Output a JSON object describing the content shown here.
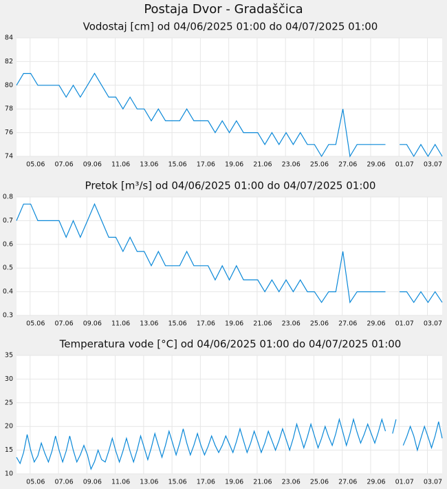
{
  "title": "Postaja Dvor - Gradaščica",
  "chart_data": [
    {
      "type": "line",
      "title": "Vodostaj [cm] od 04/06/2025 01:00 do 04/07/2025 01:00",
      "color": "#0a88d8",
      "grid": true,
      "xlim": [
        "2025-06-04 01:00",
        "2025-07-04 01:00"
      ],
      "xticks": [
        {
          "value": "2025-06-05 00:00",
          "label": "05.06"
        },
        {
          "value": "2025-06-07 00:00",
          "label": "07.06"
        },
        {
          "value": "2025-06-09 00:00",
          "label": "09.06"
        },
        {
          "value": "2025-06-11 00:00",
          "label": "11.06"
        },
        {
          "value": "2025-06-13 00:00",
          "label": "13.06"
        },
        {
          "value": "2025-06-15 00:00",
          "label": "15.06"
        },
        {
          "value": "2025-06-17 00:00",
          "label": "17.06"
        },
        {
          "value": "2025-06-19 00:00",
          "label": "19.06"
        },
        {
          "value": "2025-06-21 00:00",
          "label": "21.06"
        },
        {
          "value": "2025-06-23 00:00",
          "label": "23.06"
        },
        {
          "value": "2025-06-25 00:00",
          "label": "25.06"
        },
        {
          "value": "2025-06-27 00:00",
          "label": "27.06"
        },
        {
          "value": "2025-06-29 00:00",
          "label": "29.06"
        },
        {
          "value": "2025-07-01 00:00",
          "label": "01.07"
        },
        {
          "value": "2025-07-03 00:00",
          "label": "03.07"
        }
      ],
      "ylim": [
        74,
        84
      ],
      "yticks": [
        74,
        76,
        78,
        80,
        82,
        84
      ],
      "x": [
        "2025-06-04 01:00",
        "2025-06-04 13:00",
        "2025-06-05 01:00",
        "2025-06-05 13:00",
        "2025-06-06 01:00",
        "2025-06-06 13:00",
        "2025-06-07 01:00",
        "2025-06-07 13:00",
        "2025-06-08 01:00",
        "2025-06-08 13:00",
        "2025-06-09 01:00",
        "2025-06-09 13:00",
        "2025-06-10 01:00",
        "2025-06-10 13:00",
        "2025-06-11 01:00",
        "2025-06-11 13:00",
        "2025-06-12 01:00",
        "2025-06-12 13:00",
        "2025-06-13 01:00",
        "2025-06-13 13:00",
        "2025-06-14 01:00",
        "2025-06-14 13:00",
        "2025-06-15 01:00",
        "2025-06-15 13:00",
        "2025-06-16 01:00",
        "2025-06-16 13:00",
        "2025-06-17 01:00",
        "2025-06-17 13:00",
        "2025-06-18 01:00",
        "2025-06-18 13:00",
        "2025-06-19 01:00",
        "2025-06-19 13:00",
        "2025-06-20 01:00",
        "2025-06-20 13:00",
        "2025-06-21 01:00",
        "2025-06-21 13:00",
        "2025-06-22 01:00",
        "2025-06-22 13:00",
        "2025-06-23 01:00",
        "2025-06-23 13:00",
        "2025-06-24 01:00",
        "2025-06-24 13:00",
        "2025-06-25 01:00",
        "2025-06-25 13:00",
        "2025-06-26 01:00",
        "2025-06-26 13:00",
        "2025-06-27 01:00",
        "2025-06-27 13:00",
        "2025-06-28 01:00",
        "2025-06-28 13:00",
        "2025-06-29 01:00",
        "2025-06-29 13:00",
        "2025-06-30 01:00",
        "2025-06-30 13:00",
        "2025-07-01 01:00",
        "2025-07-01 13:00",
        "2025-07-02 01:00",
        "2025-07-02 13:00",
        "2025-07-03 01:00",
        "2025-07-03 13:00",
        "2025-07-04 01:00"
      ],
      "values": [
        80,
        81,
        81,
        80,
        80,
        80,
        80,
        79,
        80,
        79,
        80,
        81,
        80,
        79,
        79,
        78,
        79,
        78,
        78,
        77,
        78,
        77,
        77,
        77,
        78,
        77,
        77,
        77,
        76,
        77,
        76,
        77,
        76,
        76,
        76,
        75,
        76,
        75,
        76,
        75,
        76,
        75,
        75,
        74,
        75,
        75,
        78,
        74,
        75,
        75,
        75,
        75,
        75,
        null,
        75,
        75,
        74,
        75,
        74,
        75,
        74
      ]
    },
    {
      "type": "line",
      "title": "Pretok [m³/s] od 04/06/2025 01:00 do 04/07/2025 01:00",
      "color": "#0a88d8",
      "grid": true,
      "xlim": [
        "2025-06-04 01:00",
        "2025-07-04 01:00"
      ],
      "xticks": [
        {
          "value": "2025-06-05 00:00",
          "label": "05.06"
        },
        {
          "value": "2025-06-07 00:00",
          "label": "07.06"
        },
        {
          "value": "2025-06-09 00:00",
          "label": "09.06"
        },
        {
          "value": "2025-06-11 00:00",
          "label": "11.06"
        },
        {
          "value": "2025-06-13 00:00",
          "label": "13.06"
        },
        {
          "value": "2025-06-15 00:00",
          "label": "15.06"
        },
        {
          "value": "2025-06-17 00:00",
          "label": "17.06"
        },
        {
          "value": "2025-06-19 00:00",
          "label": "19.06"
        },
        {
          "value": "2025-06-21 00:00",
          "label": "21.06"
        },
        {
          "value": "2025-06-23 00:00",
          "label": "23.06"
        },
        {
          "value": "2025-06-25 00:00",
          "label": "25.06"
        },
        {
          "value": "2025-06-27 00:00",
          "label": "27.06"
        },
        {
          "value": "2025-06-29 00:00",
          "label": "29.06"
        },
        {
          "value": "2025-07-01 00:00",
          "label": "01.07"
        },
        {
          "value": "2025-07-03 00:00",
          "label": "03.07"
        }
      ],
      "ylim": [
        0.3,
        0.8
      ],
      "yticks": [
        0.3,
        0.4,
        0.5,
        0.6,
        0.7,
        0.8
      ],
      "x": [
        "2025-06-04 01:00",
        "2025-06-04 13:00",
        "2025-06-05 01:00",
        "2025-06-05 13:00",
        "2025-06-06 01:00",
        "2025-06-06 13:00",
        "2025-06-07 01:00",
        "2025-06-07 13:00",
        "2025-06-08 01:00",
        "2025-06-08 13:00",
        "2025-06-09 01:00",
        "2025-06-09 13:00",
        "2025-06-10 01:00",
        "2025-06-10 13:00",
        "2025-06-11 01:00",
        "2025-06-11 13:00",
        "2025-06-12 01:00",
        "2025-06-12 13:00",
        "2025-06-13 01:00",
        "2025-06-13 13:00",
        "2025-06-14 01:00",
        "2025-06-14 13:00",
        "2025-06-15 01:00",
        "2025-06-15 13:00",
        "2025-06-16 01:00",
        "2025-06-16 13:00",
        "2025-06-17 01:00",
        "2025-06-17 13:00",
        "2025-06-18 01:00",
        "2025-06-18 13:00",
        "2025-06-19 01:00",
        "2025-06-19 13:00",
        "2025-06-20 01:00",
        "2025-06-20 13:00",
        "2025-06-21 01:00",
        "2025-06-21 13:00",
        "2025-06-22 01:00",
        "2025-06-22 13:00",
        "2025-06-23 01:00",
        "2025-06-23 13:00",
        "2025-06-24 01:00",
        "2025-06-24 13:00",
        "2025-06-25 01:00",
        "2025-06-25 13:00",
        "2025-06-26 01:00",
        "2025-06-26 13:00",
        "2025-06-27 01:00",
        "2025-06-27 13:00",
        "2025-06-28 01:00",
        "2025-06-28 13:00",
        "2025-06-29 01:00",
        "2025-06-29 13:00",
        "2025-06-30 01:00",
        "2025-06-30 13:00",
        "2025-07-01 01:00",
        "2025-07-01 13:00",
        "2025-07-02 01:00",
        "2025-07-02 13:00",
        "2025-07-03 01:00",
        "2025-07-03 13:00",
        "2025-07-04 01:00"
      ],
      "values": [
        0.7,
        0.77,
        0.77,
        0.7,
        0.7,
        0.7,
        0.7,
        0.63,
        0.7,
        0.63,
        0.7,
        0.77,
        0.7,
        0.63,
        0.63,
        0.57,
        0.63,
        0.57,
        0.57,
        0.51,
        0.57,
        0.51,
        0.51,
        0.51,
        0.57,
        0.51,
        0.51,
        0.51,
        0.45,
        0.51,
        0.45,
        0.51,
        0.45,
        0.45,
        0.45,
        0.4,
        0.45,
        0.4,
        0.45,
        0.4,
        0.45,
        0.4,
        0.4,
        0.355,
        0.4,
        0.4,
        0.57,
        0.355,
        0.4,
        0.4,
        0.4,
        0.4,
        0.4,
        null,
        0.4,
        0.4,
        0.355,
        0.4,
        0.355,
        0.4,
        0.355
      ]
    },
    {
      "type": "line",
      "title": "Temperatura vode [°C] od 04/06/2025 01:00 do 04/07/2025 01:00",
      "color": "#0a88d8",
      "grid": true,
      "xlim": [
        "2025-06-04 01:00",
        "2025-07-04 01:00"
      ],
      "xticks": [
        {
          "value": "2025-06-05 00:00",
          "label": "05.06"
        },
        {
          "value": "2025-06-07 00:00",
          "label": "07.06"
        },
        {
          "value": "2025-06-09 00:00",
          "label": "09.06"
        },
        {
          "value": "2025-06-11 00:00",
          "label": "11.06"
        },
        {
          "value": "2025-06-13 00:00",
          "label": "13.06"
        },
        {
          "value": "2025-06-15 00:00",
          "label": "15.06"
        },
        {
          "value": "2025-06-17 00:00",
          "label": "17.06"
        },
        {
          "value": "2025-06-19 00:00",
          "label": "19.06"
        },
        {
          "value": "2025-06-21 00:00",
          "label": "21.06"
        },
        {
          "value": "2025-06-23 00:00",
          "label": "23.06"
        },
        {
          "value": "2025-06-25 00:00",
          "label": "25.06"
        },
        {
          "value": "2025-06-27 00:00",
          "label": "27.06"
        },
        {
          "value": "2025-06-29 00:00",
          "label": "29.06"
        },
        {
          "value": "2025-07-01 00:00",
          "label": "01.07"
        },
        {
          "value": "2025-07-03 00:00",
          "label": "03.07"
        }
      ],
      "ylim": [
        10,
        35
      ],
      "yticks": [
        10,
        15,
        20,
        25,
        30,
        35
      ],
      "x": [
        "2025-06-04 01:00",
        "2025-06-04 07:00",
        "2025-06-04 13:00",
        "2025-06-04 19:00",
        "2025-06-05 01:00",
        "2025-06-05 07:00",
        "2025-06-05 13:00",
        "2025-06-05 19:00",
        "2025-06-06 01:00",
        "2025-06-06 07:00",
        "2025-06-06 13:00",
        "2025-06-06 19:00",
        "2025-06-07 01:00",
        "2025-06-07 07:00",
        "2025-06-07 13:00",
        "2025-06-07 19:00",
        "2025-06-08 01:00",
        "2025-06-08 07:00",
        "2025-06-08 13:00",
        "2025-06-08 19:00",
        "2025-06-09 01:00",
        "2025-06-09 07:00",
        "2025-06-09 13:00",
        "2025-06-09 19:00",
        "2025-06-10 01:00",
        "2025-06-10 07:00",
        "2025-06-10 13:00",
        "2025-06-10 19:00",
        "2025-06-11 01:00",
        "2025-06-11 07:00",
        "2025-06-11 13:00",
        "2025-06-11 19:00",
        "2025-06-12 01:00",
        "2025-06-12 07:00",
        "2025-06-12 13:00",
        "2025-06-12 19:00",
        "2025-06-13 01:00",
        "2025-06-13 07:00",
        "2025-06-13 13:00",
        "2025-06-13 19:00",
        "2025-06-14 01:00",
        "2025-06-14 07:00",
        "2025-06-14 13:00",
        "2025-06-14 19:00",
        "2025-06-15 01:00",
        "2025-06-15 07:00",
        "2025-06-15 13:00",
        "2025-06-15 19:00",
        "2025-06-16 01:00",
        "2025-06-16 07:00",
        "2025-06-16 13:00",
        "2025-06-16 19:00",
        "2025-06-17 01:00",
        "2025-06-17 07:00",
        "2025-06-17 13:00",
        "2025-06-17 19:00",
        "2025-06-18 01:00",
        "2025-06-18 07:00",
        "2025-06-18 13:00",
        "2025-06-18 19:00",
        "2025-06-19 01:00",
        "2025-06-19 07:00",
        "2025-06-19 13:00",
        "2025-06-19 19:00",
        "2025-06-20 01:00",
        "2025-06-20 07:00",
        "2025-06-20 13:00",
        "2025-06-20 19:00",
        "2025-06-21 01:00",
        "2025-06-21 07:00",
        "2025-06-21 13:00",
        "2025-06-21 19:00",
        "2025-06-22 01:00",
        "2025-06-22 07:00",
        "2025-06-22 13:00",
        "2025-06-22 19:00",
        "2025-06-23 01:00",
        "2025-06-23 07:00",
        "2025-06-23 13:00",
        "2025-06-23 19:00",
        "2025-06-24 01:00",
        "2025-06-24 07:00",
        "2025-06-24 13:00",
        "2025-06-24 19:00",
        "2025-06-25 01:00",
        "2025-06-25 07:00",
        "2025-06-25 13:00",
        "2025-06-25 19:00",
        "2025-06-26 01:00",
        "2025-06-26 07:00",
        "2025-06-26 13:00",
        "2025-06-26 19:00",
        "2025-06-27 01:00",
        "2025-06-27 07:00",
        "2025-06-27 13:00",
        "2025-06-27 19:00",
        "2025-06-28 01:00",
        "2025-06-28 07:00",
        "2025-06-28 13:00",
        "2025-06-28 19:00",
        "2025-06-29 01:00",
        "2025-06-29 07:00",
        "2025-06-29 13:00",
        "2025-06-29 19:00",
        "2025-06-30 01:00",
        "2025-06-30 07:00",
        "2025-06-30 13:00",
        "2025-06-30 19:00",
        "2025-07-01 01:00",
        "2025-07-01 07:00",
        "2025-07-01 13:00",
        "2025-07-01 19:00",
        "2025-07-02 01:00",
        "2025-07-02 07:00",
        "2025-07-02 13:00",
        "2025-07-02 19:00",
        "2025-07-03 01:00",
        "2025-07-03 07:00",
        "2025-07-03 13:00",
        "2025-07-03 19:00",
        "2025-07-04 01:00"
      ],
      "values": [
        13.5,
        12.2,
        14.5,
        18.3,
        15,
        12.5,
        13.8,
        16.5,
        14.3,
        12.5,
        14.8,
        18,
        15,
        12.5,
        14.8,
        18,
        15,
        12.5,
        14,
        16,
        14,
        11,
        12.6,
        15,
        13,
        12.5,
        14.8,
        17.5,
        14.8,
        12.5,
        14.8,
        17.5,
        14.8,
        12.5,
        15,
        18,
        15.5,
        13,
        15.5,
        18.5,
        16,
        13.5,
        16,
        19,
        16.5,
        14,
        16.5,
        19.5,
        16.5,
        14,
        16,
        18.5,
        16,
        14,
        15.8,
        18,
        16,
        14.5,
        16,
        18,
        16.3,
        14.5,
        16.8,
        19.5,
        17,
        14.5,
        16.5,
        19,
        16.8,
        14.5,
        16.5,
        19,
        17,
        15,
        17,
        19.5,
        17.3,
        15,
        17.5,
        20.5,
        18,
        15.5,
        17.8,
        20.5,
        18,
        15.5,
        17.5,
        20,
        17.8,
        16,
        18.5,
        21.5,
        18.8,
        16,
        18.5,
        21.5,
        18.8,
        16.5,
        18.3,
        20.5,
        18.5,
        16.5,
        18.8,
        21.5,
        19,
        null,
        18.5,
        21.5,
        null,
        16,
        17.8,
        20,
        18,
        15,
        17.5,
        20,
        17.8,
        15.5,
        18,
        21,
        17.5
      ]
    }
  ]
}
